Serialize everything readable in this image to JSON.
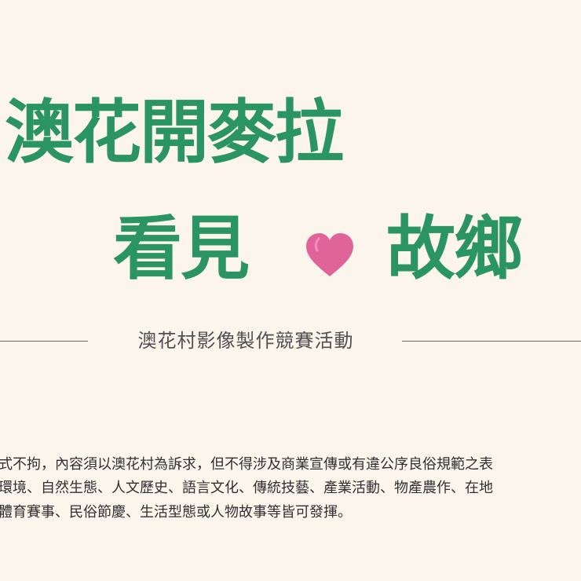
{
  "headline": {
    "line1": "澳花開麥拉",
    "line2_left": "看見",
    "line2_right": "故鄉"
  },
  "subtitle": "澳花村影像製作競賽活動",
  "paragraph": {
    "line1": "式不拘，內容須以澳花村為訴求，但不得涉及商業宣傳或有違公序良俗規範之表",
    "line2": "環境、自然生態、人文歷史、語言文化、傳統技藝、產業活動、物產農作、在地",
    "line3": "體育賽事、民俗節慶、生活型態或人物故事等皆可發揮。"
  },
  "colors": {
    "background": "#fbf5ec",
    "headline": "#2a9462",
    "heart": "#e0649a",
    "subtitle": "#505050",
    "rule": "#6b6b6b",
    "body_text": "#303030"
  },
  "icons": {
    "heart": "heart-icon"
  }
}
